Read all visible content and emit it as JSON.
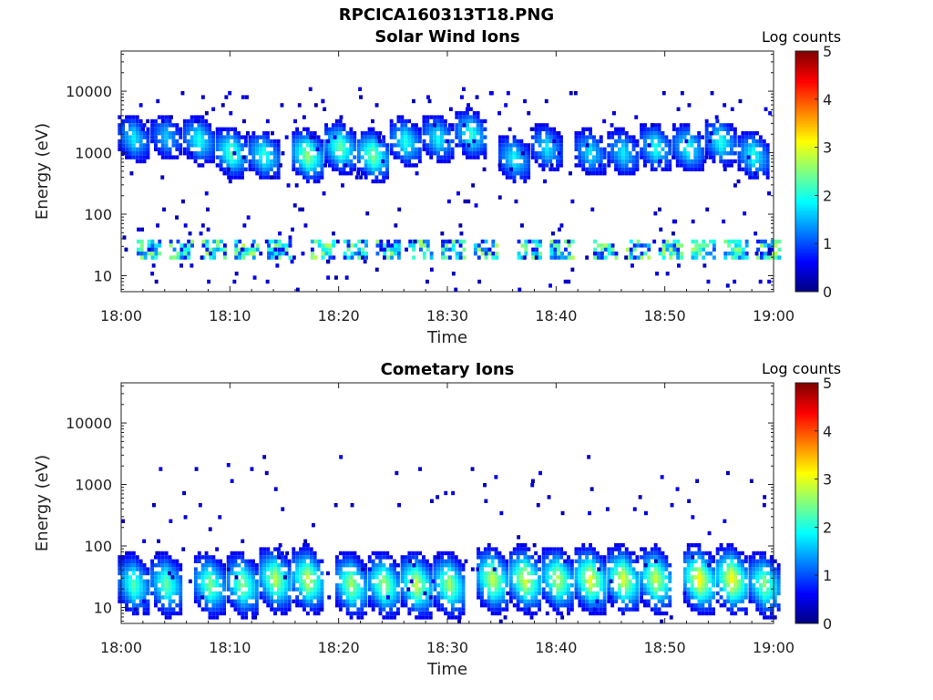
{
  "figure": {
    "filename_title": "RPCICA160313T18.PNG"
  },
  "colorbar": {
    "label": "Log counts",
    "ticks": [
      "0",
      "1",
      "2",
      "3",
      "4",
      "5"
    ],
    "range": [
      0,
      5
    ],
    "colormap": "jet"
  },
  "chart_data": [
    {
      "type": "heatmap",
      "title": "Solar Wind Ions",
      "xlabel": "Time",
      "ylabel": "Energy (eV)",
      "x_ticks": [
        "18:00",
        "18:10",
        "18:20",
        "18:30",
        "18:40",
        "18:50",
        "19:00"
      ],
      "x_range": [
        "18:00",
        "19:00"
      ],
      "y_ticks": [
        "10",
        "100",
        "1000",
        "10000"
      ],
      "y_scale": "log",
      "y_range": [
        5.5,
        45000
      ],
      "z_label": "Log counts",
      "z_range": [
        0,
        5
      ],
      "bursts": [
        {
          "t": "18:01",
          "e_center": 1700,
          "peak_log": 1.8
        },
        {
          "t": "18:04",
          "e_center": 1800,
          "peak_log": 1.6
        },
        {
          "t": "18:07",
          "e_center": 1600,
          "peak_log": 2.0
        },
        {
          "t": "18:10",
          "e_center": 1000,
          "peak_log": 2.3
        },
        {
          "t": "18:13",
          "e_center": 900,
          "peak_log": 2.1
        },
        {
          "t": "18:17",
          "e_center": 900,
          "peak_log": 2.6
        },
        {
          "t": "18:20",
          "e_center": 1200,
          "peak_log": 2.4
        },
        {
          "t": "18:23",
          "e_center": 900,
          "peak_log": 2.5
        },
        {
          "t": "18:26",
          "e_center": 1500,
          "peak_log": 2.0
        },
        {
          "t": "18:29",
          "e_center": 1700,
          "peak_log": 1.9
        },
        {
          "t": "18:32",
          "e_center": 2000,
          "peak_log": 2.1
        },
        {
          "t": "18:36",
          "e_center": 800,
          "peak_log": 1.9
        },
        {
          "t": "18:39",
          "e_center": 1200,
          "peak_log": 1.8
        },
        {
          "t": "18:43",
          "e_center": 1000,
          "peak_log": 1.8
        },
        {
          "t": "18:46",
          "e_center": 1000,
          "peak_log": 1.8
        },
        {
          "t": "18:49",
          "e_center": 1200,
          "peak_log": 2.0
        },
        {
          "t": "18:52",
          "e_center": 1200,
          "peak_log": 2.0
        },
        {
          "t": "18:55",
          "e_center": 1500,
          "peak_log": 2.0
        },
        {
          "t": "18:58",
          "e_center": 900,
          "peak_log": 2.0
        }
      ],
      "low_band": {
        "e_range": [
          18,
          40
        ],
        "peak_log": 2.2
      }
    },
    {
      "type": "heatmap",
      "title": "Cometary Ions",
      "xlabel": "Time",
      "ylabel": "Energy (eV)",
      "x_ticks": [
        "18:00",
        "18:10",
        "18:20",
        "18:30",
        "18:40",
        "18:50",
        "19:00"
      ],
      "x_range": [
        "18:00",
        "19:00"
      ],
      "y_ticks": [
        "10",
        "100",
        "1000",
        "10000"
      ],
      "y_scale": "log",
      "y_range": [
        5.5,
        45000
      ],
      "z_label": "Log counts",
      "z_range": [
        0,
        5
      ],
      "bursts": [
        {
          "t": "18:01",
          "e_center": 25,
          "peak_log": 2.3
        },
        {
          "t": "18:04",
          "e_center": 25,
          "peak_log": 2.4
        },
        {
          "t": "18:08",
          "e_center": 25,
          "peak_log": 2.5
        },
        {
          "t": "18:11",
          "e_center": 25,
          "peak_log": 2.6
        },
        {
          "t": "18:14",
          "e_center": 30,
          "peak_log": 2.8
        },
        {
          "t": "18:17",
          "e_center": 30,
          "peak_log": 2.9
        },
        {
          "t": "18:21",
          "e_center": 25,
          "peak_log": 2.7
        },
        {
          "t": "18:24",
          "e_center": 25,
          "peak_log": 2.7
        },
        {
          "t": "18:27",
          "e_center": 25,
          "peak_log": 2.9
        },
        {
          "t": "18:30",
          "e_center": 25,
          "peak_log": 2.7
        },
        {
          "t": "18:34",
          "e_center": 30,
          "peak_log": 2.9
        },
        {
          "t": "18:37",
          "e_center": 30,
          "peak_log": 3.0
        },
        {
          "t": "18:40",
          "e_center": 30,
          "peak_log": 2.8
        },
        {
          "t": "18:43",
          "e_center": 30,
          "peak_log": 3.1
        },
        {
          "t": "18:46",
          "e_center": 30,
          "peak_log": 3.0
        },
        {
          "t": "18:49",
          "e_center": 30,
          "peak_log": 2.9
        },
        {
          "t": "18:53",
          "e_center": 30,
          "peak_log": 3.2
        },
        {
          "t": "18:56",
          "e_center": 30,
          "peak_log": 3.2
        },
        {
          "t": "18:59",
          "e_center": 25,
          "peak_log": 2.6
        }
      ]
    }
  ]
}
